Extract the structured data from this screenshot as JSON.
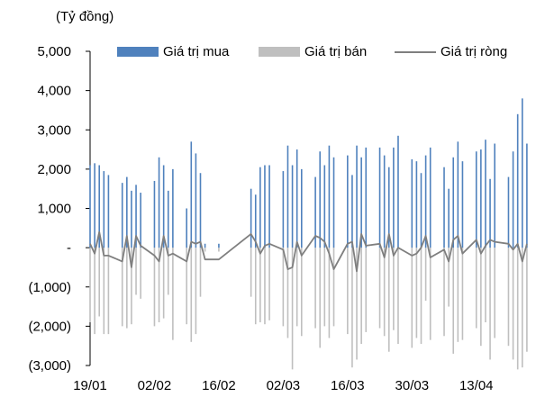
{
  "chart_data": {
    "type": "bar",
    "unit_label": "(Tỷ đồng)",
    "title": "",
    "xlabel": "",
    "ylabel": "",
    "ylim": [
      -3000,
      5000
    ],
    "yticks": [
      5000,
      4000,
      3000,
      2000,
      1000,
      0,
      -1000,
      -2000,
      -3000
    ],
    "ytick_labels": [
      "5,000",
      "4,000",
      "3,000",
      "2,000",
      "1,000",
      "-",
      "(1,000)",
      "(2,000)",
      "(3,000)"
    ],
    "xtick_labels": [
      "19/01",
      "02/02",
      "16/02",
      "02/03",
      "16/03",
      "30/03",
      "13/04"
    ],
    "xtick_days": [
      0,
      14,
      28,
      42,
      56,
      70,
      84
    ],
    "x_range_days": [
      0,
      96
    ],
    "grid": false,
    "legend_position": "top",
    "colors": {
      "buy": "#4f81bd",
      "sell": "#bfbfbf",
      "net": "#7f7f7f"
    },
    "series": [
      {
        "name": "Giá trị mua",
        "kind": "bar",
        "x": [
          0,
          1,
          2,
          3,
          4,
          7,
          8,
          9,
          10,
          11,
          14,
          15,
          16,
          17,
          18,
          21,
          22,
          23,
          24,
          25,
          28,
          35,
          36,
          37,
          38,
          39,
          42,
          43,
          44,
          45,
          46,
          49,
          50,
          51,
          52,
          53,
          56,
          57,
          58,
          59,
          60,
          63,
          64,
          65,
          66,
          67,
          70,
          71,
          72,
          73,
          74,
          77,
          78,
          79,
          80,
          81,
          84,
          85,
          86,
          87,
          88,
          91,
          92,
          93,
          94,
          95
        ],
        "values": [
          2100,
          2150,
          2100,
          1950,
          1850,
          1650,
          1800,
          1450,
          1600,
          1400,
          1700,
          2300,
          2100,
          1450,
          2000,
          1000,
          2700,
          2400,
          1900,
          100,
          100,
          1500,
          1350,
          2050,
          2100,
          2100,
          1950,
          2600,
          2100,
          2500,
          2000,
          1800,
          2450,
          2100,
          2600,
          2300,
          2350,
          1850,
          2600,
          2300,
          2550,
          2550,
          2350,
          2050,
          2550,
          2850,
          2250,
          2200,
          1900,
          2350,
          2550,
          2050,
          1500,
          2300,
          2700,
          2200,
          2450,
          2500,
          2750,
          1750,
          2650,
          1800,
          2450,
          3400,
          3800,
          2650
        ]
      },
      {
        "name": "Giá trị bán",
        "kind": "bar",
        "x": [
          0,
          1,
          2,
          3,
          4,
          7,
          8,
          9,
          10,
          11,
          14,
          15,
          16,
          17,
          18,
          21,
          22,
          23,
          24,
          25,
          28,
          35,
          36,
          37,
          38,
          39,
          42,
          43,
          44,
          45,
          46,
          49,
          50,
          51,
          52,
          53,
          56,
          57,
          58,
          59,
          60,
          63,
          64,
          65,
          66,
          67,
          70,
          71,
          72,
          73,
          74,
          77,
          78,
          79,
          80,
          81,
          84,
          85,
          86,
          87,
          88,
          91,
          92,
          93,
          94,
          95
        ],
        "values": [
          -1900,
          -2200,
          -1750,
          -2200,
          -2200,
          -2000,
          -2050,
          -1950,
          -1200,
          -1300,
          -2000,
          -1900,
          -1800,
          -1200,
          -2350,
          -1950,
          -2400,
          -2200,
          -1250,
          -100,
          -100,
          -1250,
          -1950,
          -1900,
          -1950,
          -1850,
          -2000,
          -2300,
          -3100,
          -2000,
          -2250,
          -2050,
          -2550,
          -2000,
          -2300,
          -2000,
          -2200,
          -3050,
          -2850,
          -2450,
          -2150,
          -2050,
          -2250,
          -2650,
          -2100,
          -2450,
          -2550,
          -2300,
          -2450,
          -1350,
          -2350,
          -2250,
          -1500,
          -2700,
          -2400,
          -2350,
          -2050,
          -2500,
          -1900,
          -2850,
          -2300,
          -2500,
          -2850,
          -3100,
          -3050,
          -2650
        ]
      },
      {
        "name": "Giá trị ròng",
        "kind": "line",
        "x": [
          0,
          1,
          2,
          3,
          4,
          7,
          8,
          9,
          10,
          11,
          14,
          15,
          16,
          17,
          18,
          21,
          22,
          23,
          24,
          25,
          28,
          35,
          36,
          37,
          38,
          39,
          42,
          43,
          44,
          45,
          46,
          49,
          50,
          51,
          52,
          53,
          56,
          57,
          58,
          59,
          60,
          63,
          64,
          65,
          66,
          67,
          70,
          71,
          72,
          73,
          74,
          77,
          78,
          79,
          80,
          81,
          84,
          85,
          86,
          87,
          88,
          91,
          92,
          93,
          94,
          95
        ],
        "values": [
          100,
          -150,
          400,
          -200,
          -200,
          -350,
          300,
          -500,
          300,
          50,
          -200,
          -350,
          300,
          -200,
          -150,
          -350,
          150,
          100,
          150,
          -300,
          -300,
          350,
          150,
          -150,
          50,
          100,
          -50,
          -550,
          -500,
          150,
          -200,
          300,
          250,
          150,
          -150,
          -550,
          100,
          150,
          -600,
          350,
          50,
          100,
          -250,
          350,
          -200,
          0,
          -200,
          -150,
          0,
          300,
          -250,
          -50,
          -350,
          200,
          300,
          -150,
          200,
          -150,
          50,
          200,
          150,
          100,
          -50,
          100,
          -350,
          100
        ]
      }
    ]
  }
}
